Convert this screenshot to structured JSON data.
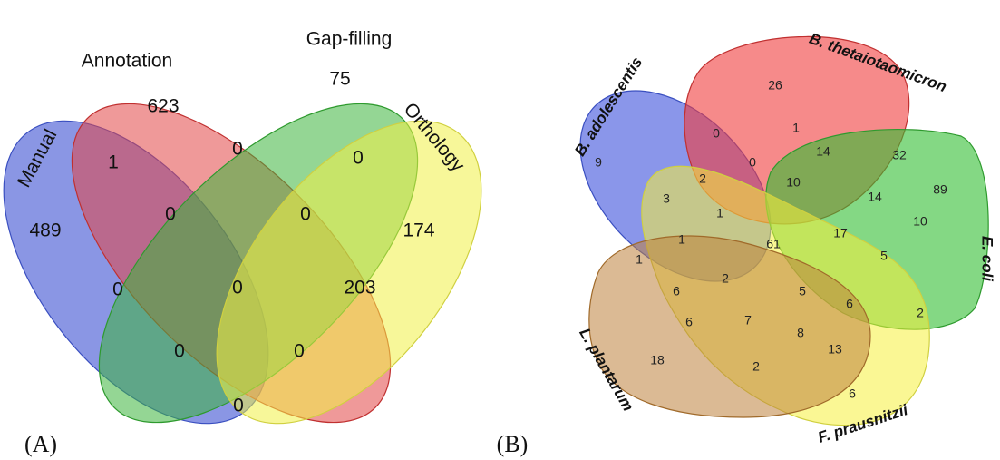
{
  "panels": [
    {
      "label": "(A)",
      "sets": [
        "Manual",
        "Annotation",
        "Gap-filling",
        "Orthology"
      ],
      "regions": [
        623,
        75,
        1,
        0,
        0,
        489,
        0,
        0,
        174,
        0,
        0,
        203,
        0,
        0,
        0
      ]
    },
    {
      "label": "(B)",
      "sets": [
        "B. adolescentis",
        "B. thetaiotaomicron",
        "E. coli",
        "F. prausnitzii",
        "L. plantarum"
      ],
      "regions": [
        26,
        0,
        1,
        0,
        14,
        32,
        89,
        9,
        3,
        2,
        10,
        14,
        10,
        1,
        1,
        61,
        17,
        5,
        1,
        6,
        2,
        5,
        6,
        2,
        6,
        7,
        8,
        13,
        18,
        2,
        6
      ]
    }
  ]
}
